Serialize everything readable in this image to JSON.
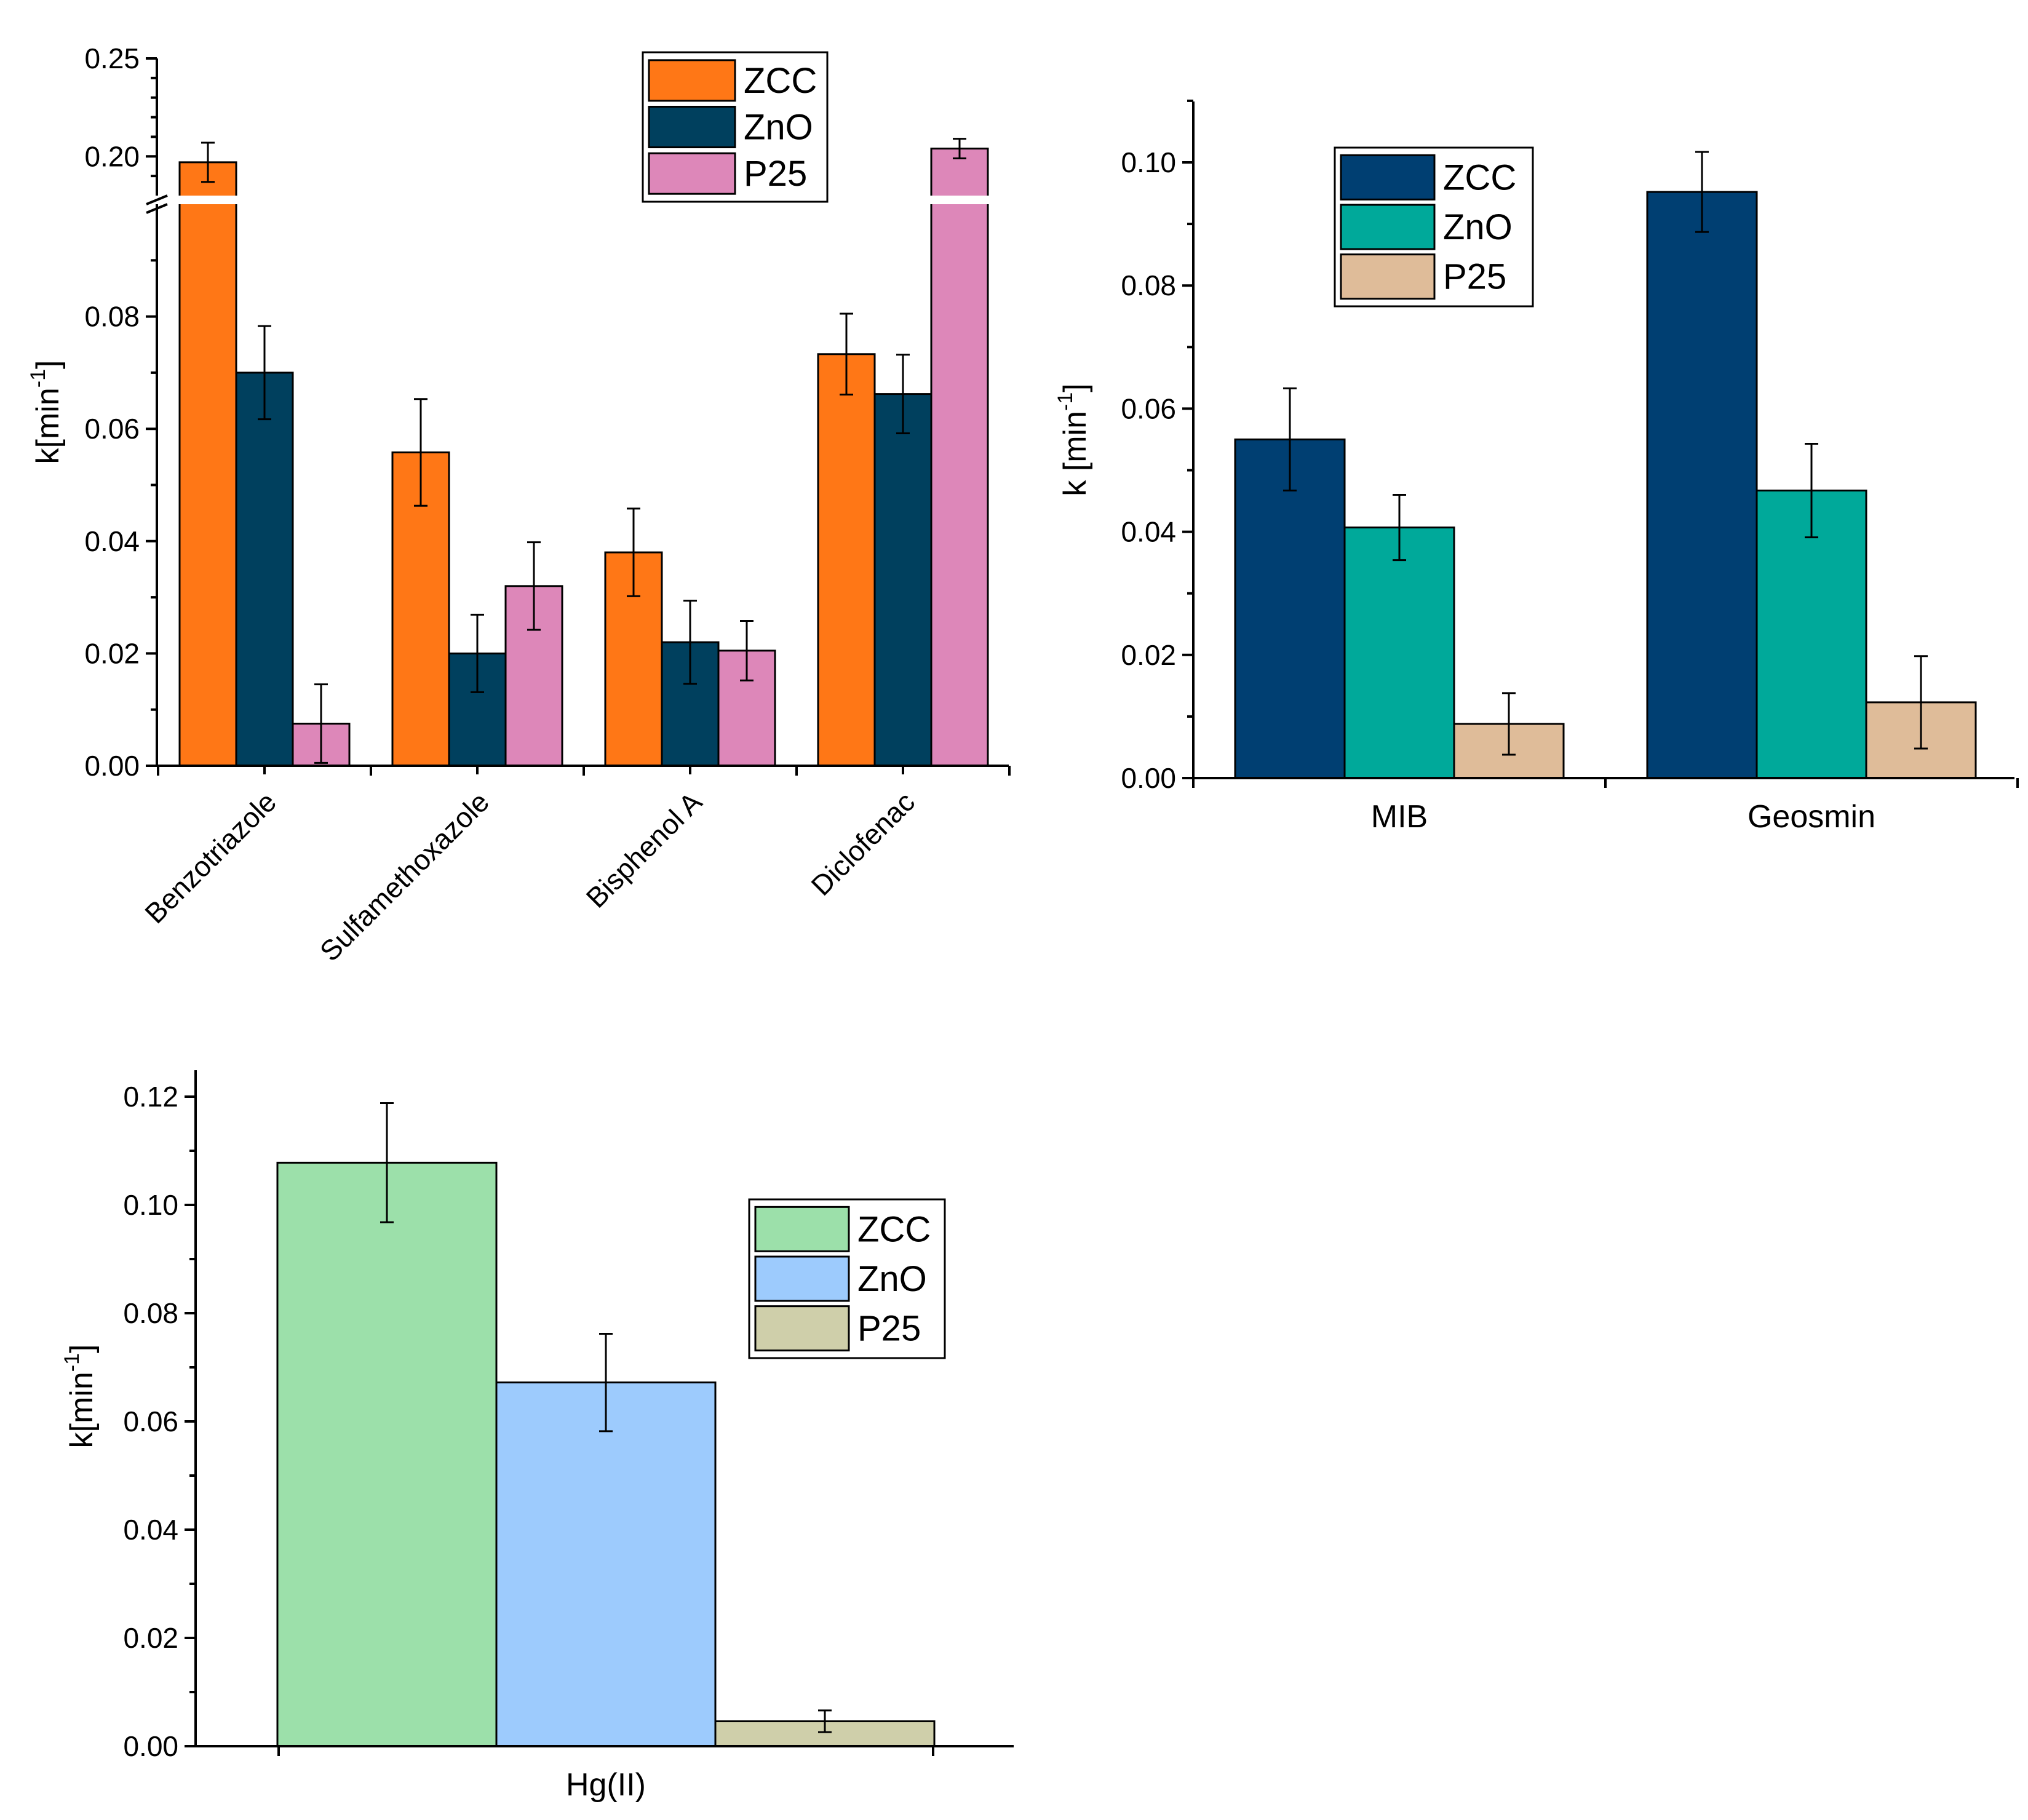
{
  "chart_data": [
    {
      "type": "bar",
      "title": "",
      "categories": [
        "Benzotriazole",
        "Sulfamethoxazole",
        "Bisphenol A",
        "Diclofenac"
      ],
      "series": [
        {
          "name": "ZCC",
          "color": "#ff7716",
          "values": [
            0.197,
            0.0558,
            0.038,
            0.0733
          ],
          "errors": [
            0.01,
            0.0095,
            0.0078,
            0.0072
          ]
        },
        {
          "name": "ZnO",
          "color": "#00405e",
          "values": [
            0.07,
            0.02,
            0.022,
            0.0662
          ],
          "errors": [
            0.0083,
            0.0069,
            0.0074,
            0.007
          ]
        },
        {
          "name": "P25",
          "color": "#dd87b9",
          "values": [
            0.0075,
            0.032,
            0.0205,
            0.204
          ],
          "errors": [
            0.007,
            0.0078,
            0.0053,
            0.005
          ]
        }
      ],
      "xlabel": "",
      "ylabel": "k[min-1]",
      "ylim": [
        0,
        0.25
      ],
      "axis_break": [
        0.1,
        0.18
      ],
      "yticks_lower": [
        "0.00",
        "0.02",
        "0.04",
        "0.06",
        "0.08"
      ],
      "yticks_upper": [
        "0.20",
        "0.25"
      ],
      "legend": [
        "ZCC",
        "ZnO",
        "P25"
      ]
    },
    {
      "type": "bar",
      "title": "",
      "categories": [
        "MIB",
        "Geosmin"
      ],
      "series": [
        {
          "name": "ZCC",
          "color": "#003f72",
          "values": [
            0.055,
            0.0952
          ],
          "errors": [
            0.0083,
            0.0065
          ]
        },
        {
          "name": "ZnO",
          "color": "#00a99a",
          "values": [
            0.0407,
            0.0467
          ],
          "errors": [
            0.0053,
            0.0076
          ]
        },
        {
          "name": "P25",
          "color": "#dfbc99",
          "values": [
            0.0088,
            0.0123
          ],
          "errors": [
            0.005,
            0.0075
          ]
        }
      ],
      "xlabel": "",
      "ylabel": "k [min-1]",
      "ylim": [
        0,
        0.11
      ],
      "yticks": [
        "0.00",
        "0.02",
        "0.04",
        "0.06",
        "0.08",
        "0.10"
      ],
      "legend": [
        "ZCC",
        "ZnO",
        "P25"
      ]
    },
    {
      "type": "bar",
      "title": "",
      "categories": [
        "Hg(II)"
      ],
      "series": [
        {
          "name": "ZCC",
          "color": "#9ce0aa",
          "values": [
            0.1078
          ],
          "errors": [
            0.011
          ]
        },
        {
          "name": "ZnO",
          "color": "#9dcbfd",
          "values": [
            0.0672
          ],
          "errors": [
            0.009
          ]
        },
        {
          "name": "P25",
          "color": "#cfcfaa",
          "values": [
            0.0046
          ],
          "errors": [
            0.002
          ]
        }
      ],
      "xlabel": "",
      "ylabel": "k[min-1]",
      "ylim": [
        0,
        0.125
      ],
      "yticks": [
        "0.00",
        "0.02",
        "0.04",
        "0.06",
        "0.08",
        "0.10",
        "0.12"
      ],
      "legend": [
        "ZCC",
        "ZnO",
        "P25"
      ]
    }
  ]
}
